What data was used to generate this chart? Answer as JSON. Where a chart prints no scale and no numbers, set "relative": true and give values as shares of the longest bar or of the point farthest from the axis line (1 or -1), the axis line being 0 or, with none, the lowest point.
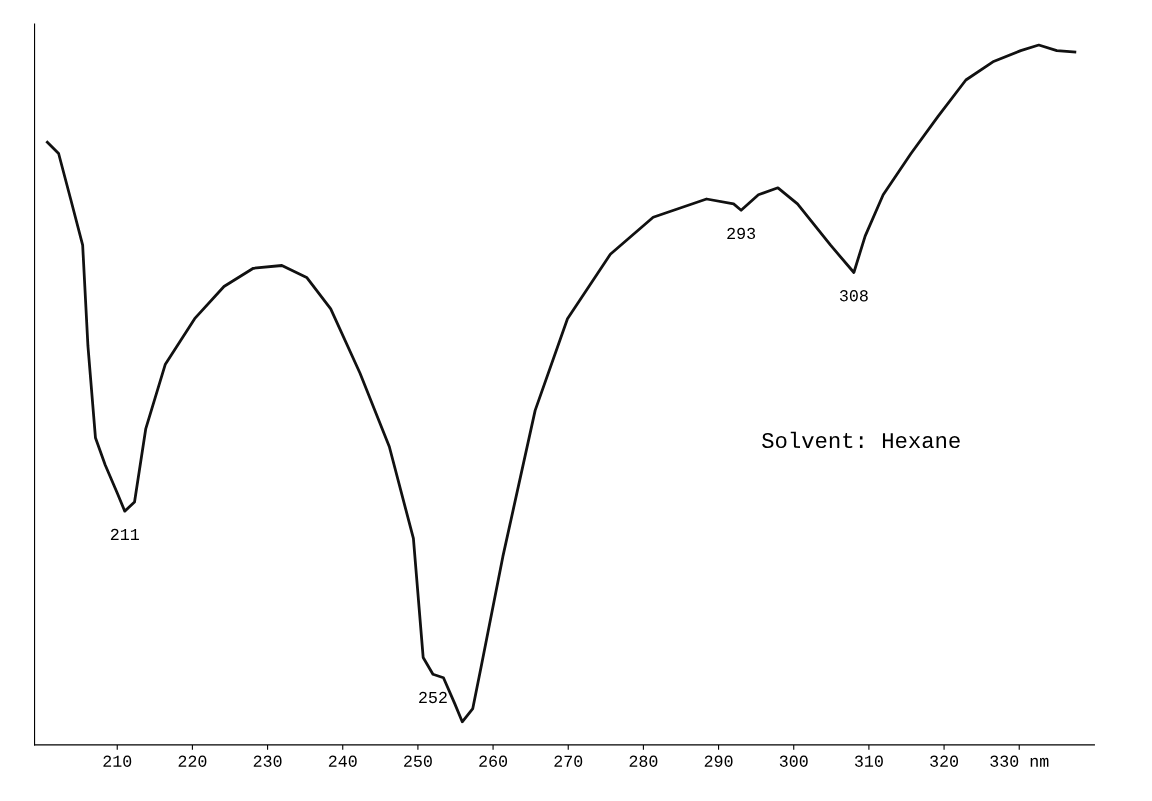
{
  "chart_data": {
    "type": "line",
    "relative": true,
    "grid": false,
    "legend": false,
    "marker": "none",
    "line_style": "solid",
    "xlim": [
      199,
      340
    ],
    "xticks": [
      210,
      220,
      230,
      240,
      250,
      260,
      270,
      280,
      290,
      300,
      310,
      {
        "value": 320,
        "label": "320"
      },
      {
        "value": 330,
        "label": "330 nm"
      }
    ],
    "series": [
      {
        "color": "#111111",
        "x": [
          200.7,
          202.2,
          203.8,
          205.4,
          206.1,
          207.1,
          208.4,
          210.0,
          211,
          212.3,
          213.8,
          216.4,
          220.3,
          224.2,
          228.1,
          231.9,
          235.2,
          238.4,
          242.3,
          246.2,
          249.4,
          250.7,
          252,
          253.4,
          254.9,
          255.9,
          257.3,
          258.4,
          261.3,
          265.6,
          269.9,
          275.6,
          281.3,
          288.4,
          292.0,
          293,
          295.3,
          297.9,
          300.5,
          304.9,
          308,
          309.5,
          311.9,
          315.6,
          319.2,
          322.9,
          326.5,
          330.2,
          332.6,
          335,
          337.4
        ],
        "values": [
          0.861,
          0.845,
          0.78,
          0.714,
          0.57,
          0.439,
          0.4,
          0.36,
          0.334,
          0.347,
          0.452,
          0.544,
          0.609,
          0.655,
          0.681,
          0.685,
          0.668,
          0.623,
          0.531,
          0.426,
          0.295,
          0.125,
          0.101,
          0.096,
          0.059,
          0.033,
          0.052,
          0.111,
          0.269,
          0.478,
          0.609,
          0.701,
          0.754,
          0.78,
          0.773,
          0.764,
          0.786,
          0.796,
          0.773,
          0.714,
          0.675,
          0.727,
          0.786,
          0.845,
          0.898,
          0.95,
          0.976,
          0.992,
          1,
          0.992,
          0.99
        ]
      }
    ],
    "annotations": [
      {
        "text": "211",
        "x": 211,
        "y": 0.334
      },
      {
        "text": "252",
        "x": 252,
        "y": 0.101
      },
      {
        "text": "293",
        "x": 293,
        "y": 0.764
      },
      {
        "text": "308",
        "x": 308,
        "y": 0.675
      },
      "Solvent: Hexane"
    ]
  }
}
